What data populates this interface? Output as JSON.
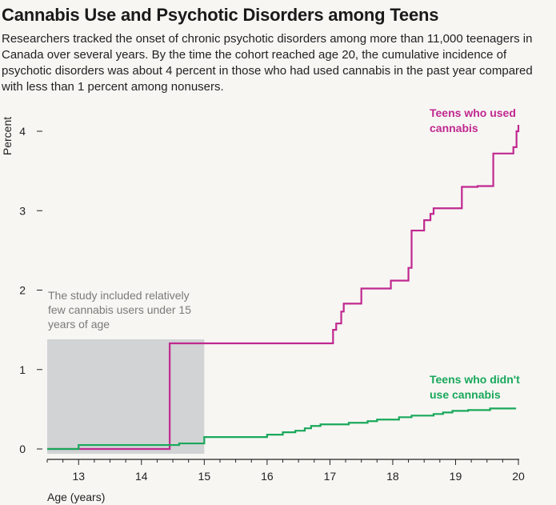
{
  "header": {
    "title": "Cannabis Use and Psychotic Disorders among Teens",
    "subtitle": "Researchers tracked the onset of chronic psychotic disorders among more than 11,000 teenagers in Canada over several years. By the time the cohort reached age 20, the cumulative incidence of psychotic disorders was about 4 percent in those who had used cannabis in the past year compared with less than 1 percent among nonusers."
  },
  "chart_data": {
    "type": "line",
    "title": "Cannabis Use and Psychotic Disorders among Teens",
    "xlabel": "Age (years)",
    "ylabel": "Percent",
    "xlim": [
      12.5,
      20
    ],
    "ylim": [
      0,
      4
    ],
    "x_ticks": [
      13,
      14,
      15,
      16,
      17,
      18,
      19,
      20
    ],
    "y_ticks": [
      0,
      1,
      2,
      3,
      4
    ],
    "step": true,
    "colors": {
      "users": "#c0288f",
      "nonusers": "#19a85a",
      "shade": "#d1d3d4"
    },
    "shaded_region": {
      "x": [
        12.5,
        15
      ],
      "label": "The study included relatively few cannabis users under 15 years of age"
    },
    "series": [
      {
        "name": "Teens who used cannabis",
        "x": [
          12.5,
          14.45,
          17.05,
          17.1,
          17.18,
          17.22,
          17.5,
          17.97,
          18.25,
          18.3,
          18.5,
          18.6,
          18.65,
          19.1,
          19.35,
          19.6,
          19.92,
          19.97,
          20.0
        ],
        "y": [
          0,
          1.33,
          1.5,
          1.58,
          1.73,
          1.83,
          2.02,
          2.12,
          2.28,
          2.75,
          2.88,
          2.96,
          3.03,
          3.3,
          3.31,
          3.72,
          3.8,
          4.0,
          4.08
        ]
      },
      {
        "name": "Teens who didn't use cannabis",
        "x": [
          12.5,
          13.0,
          14.6,
          15.0,
          16.0,
          16.25,
          16.45,
          16.6,
          16.7,
          16.85,
          17.3,
          17.6,
          17.75,
          18.1,
          18.3,
          18.65,
          18.8,
          18.95,
          19.2,
          19.55,
          19.95
        ],
        "y": [
          0,
          0.05,
          0.07,
          0.15,
          0.18,
          0.21,
          0.23,
          0.26,
          0.29,
          0.31,
          0.33,
          0.35,
          0.37,
          0.4,
          0.42,
          0.44,
          0.46,
          0.48,
          0.49,
          0.51,
          0.52
        ]
      }
    ]
  }
}
